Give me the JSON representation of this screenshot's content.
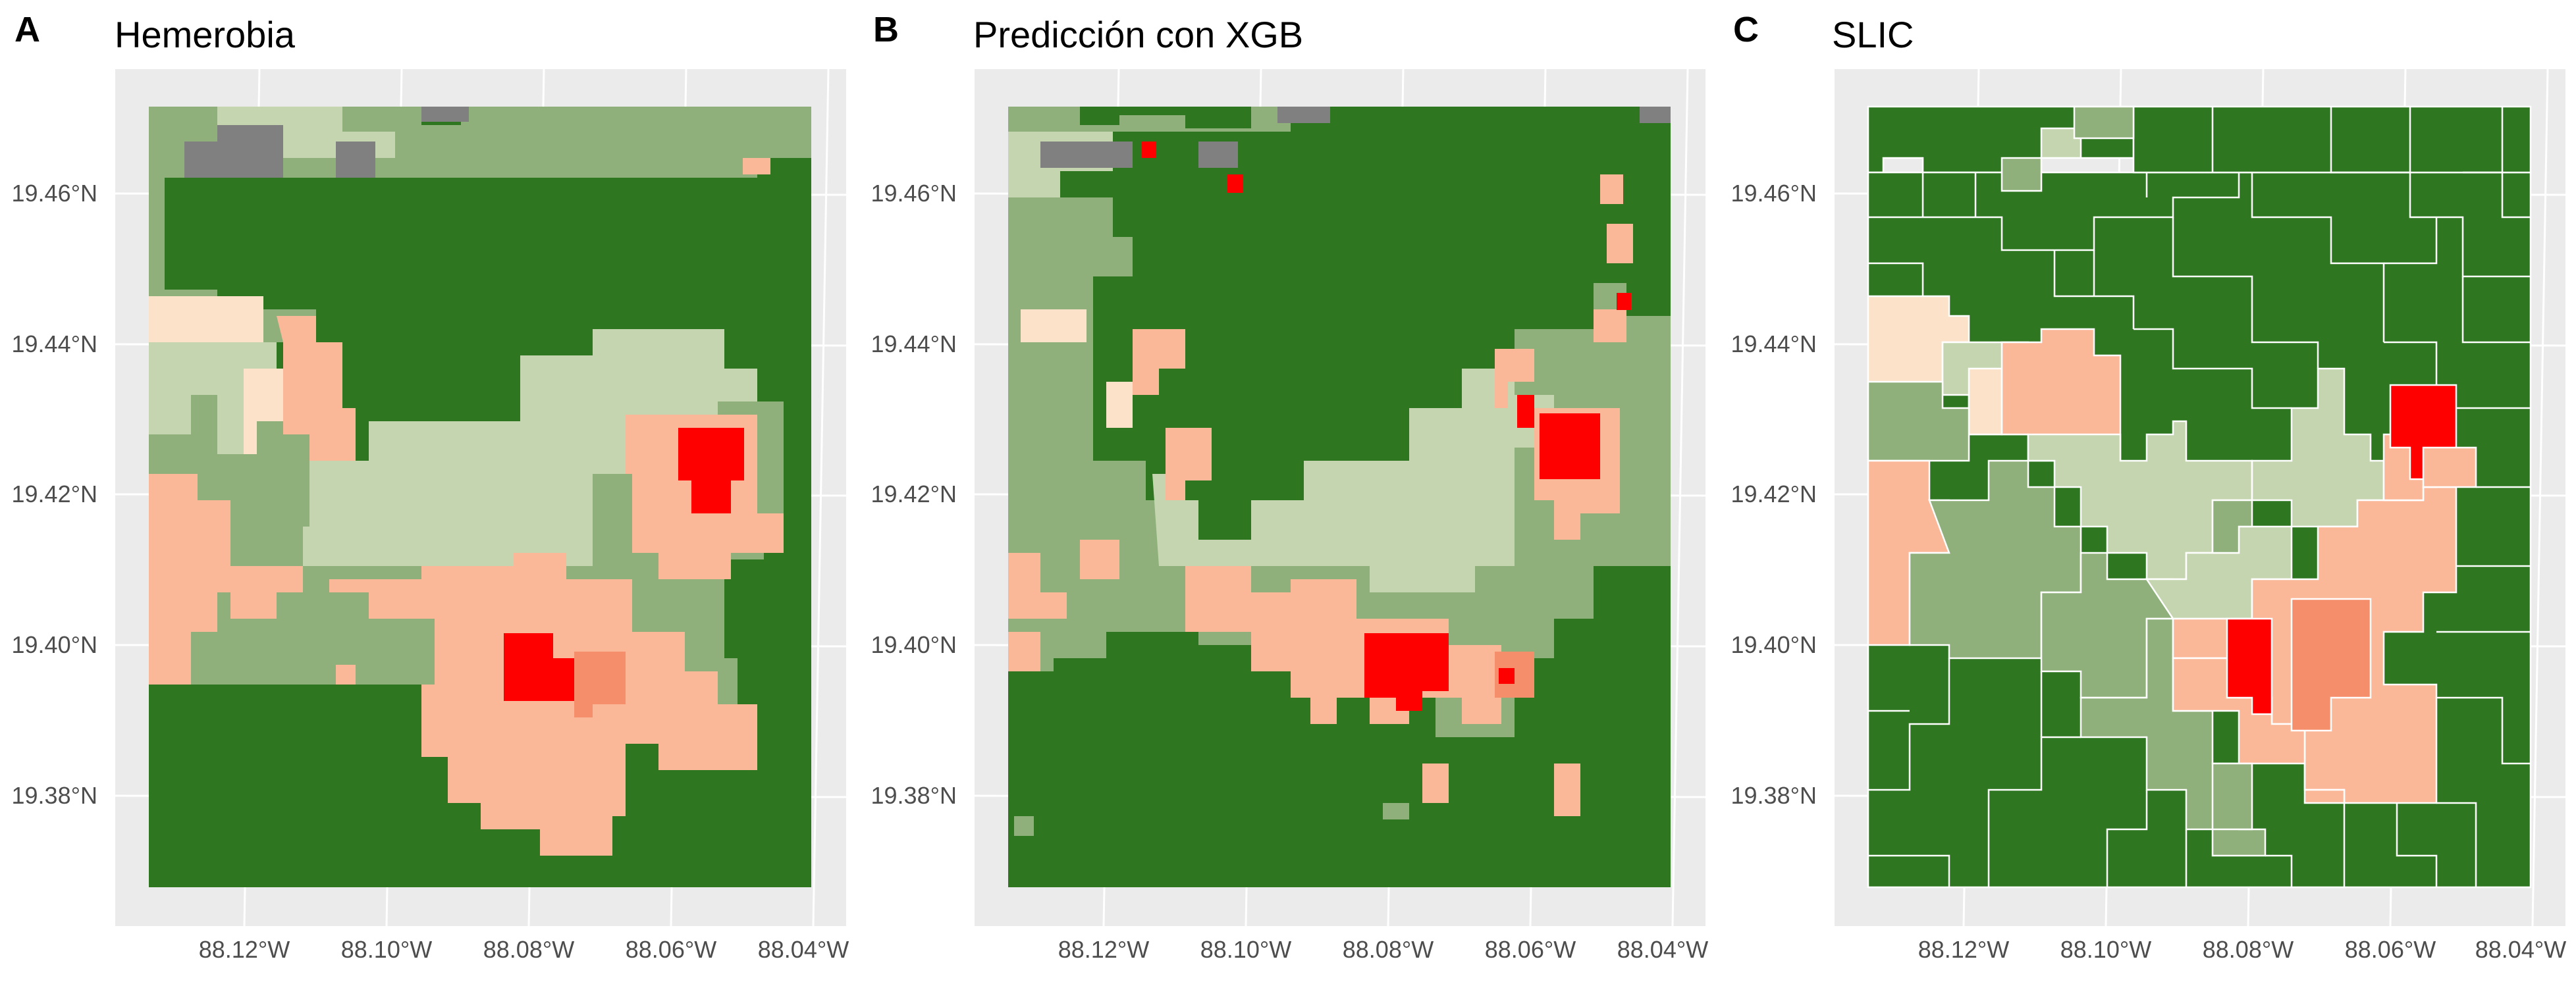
{
  "figure": {
    "panels": [
      {
        "letter": "A",
        "title": "Hemerobia",
        "x_ticks": [
          "88.12°W",
          "88.10°W",
          "88.08°W",
          "88.06°W",
          "88.04°W"
        ],
        "y_ticks": [
          "19.46°N",
          "19.44°N",
          "19.42°N",
          "19.40°N",
          "19.38°N"
        ]
      },
      {
        "letter": "B",
        "title": "Predicción con XGB",
        "x_ticks": [
          "88.12°W",
          "88.10°W",
          "88.08°W",
          "88.06°W",
          "88.04°W"
        ],
        "y_ticks": [
          "19.46°N",
          "19.44°N",
          "19.42°N",
          "19.40°N",
          "19.38°N"
        ]
      },
      {
        "letter": "C",
        "title": "SLIC",
        "x_ticks": [
          "88.12°W",
          "88.10°W",
          "88.08°W",
          "88.06°W",
          "88.04°W"
        ],
        "y_ticks": [
          "19.46°N",
          "19.44°N",
          "19.42°N",
          "19.40°N",
          "19.38°N"
        ]
      }
    ],
    "colors": {
      "panel_background": "#ebebeb",
      "graticule": "#ffffff",
      "dark_green": "#2e7620",
      "mid_green": "#8fb07a",
      "pale_green": "#c5d5b0",
      "peach": "#fbb899",
      "salmon": "#f58f6b",
      "cream": "#fbe2c9",
      "grey": "#808080",
      "red": "#ff0000",
      "segment_outline": "#ffffff"
    }
  }
}
